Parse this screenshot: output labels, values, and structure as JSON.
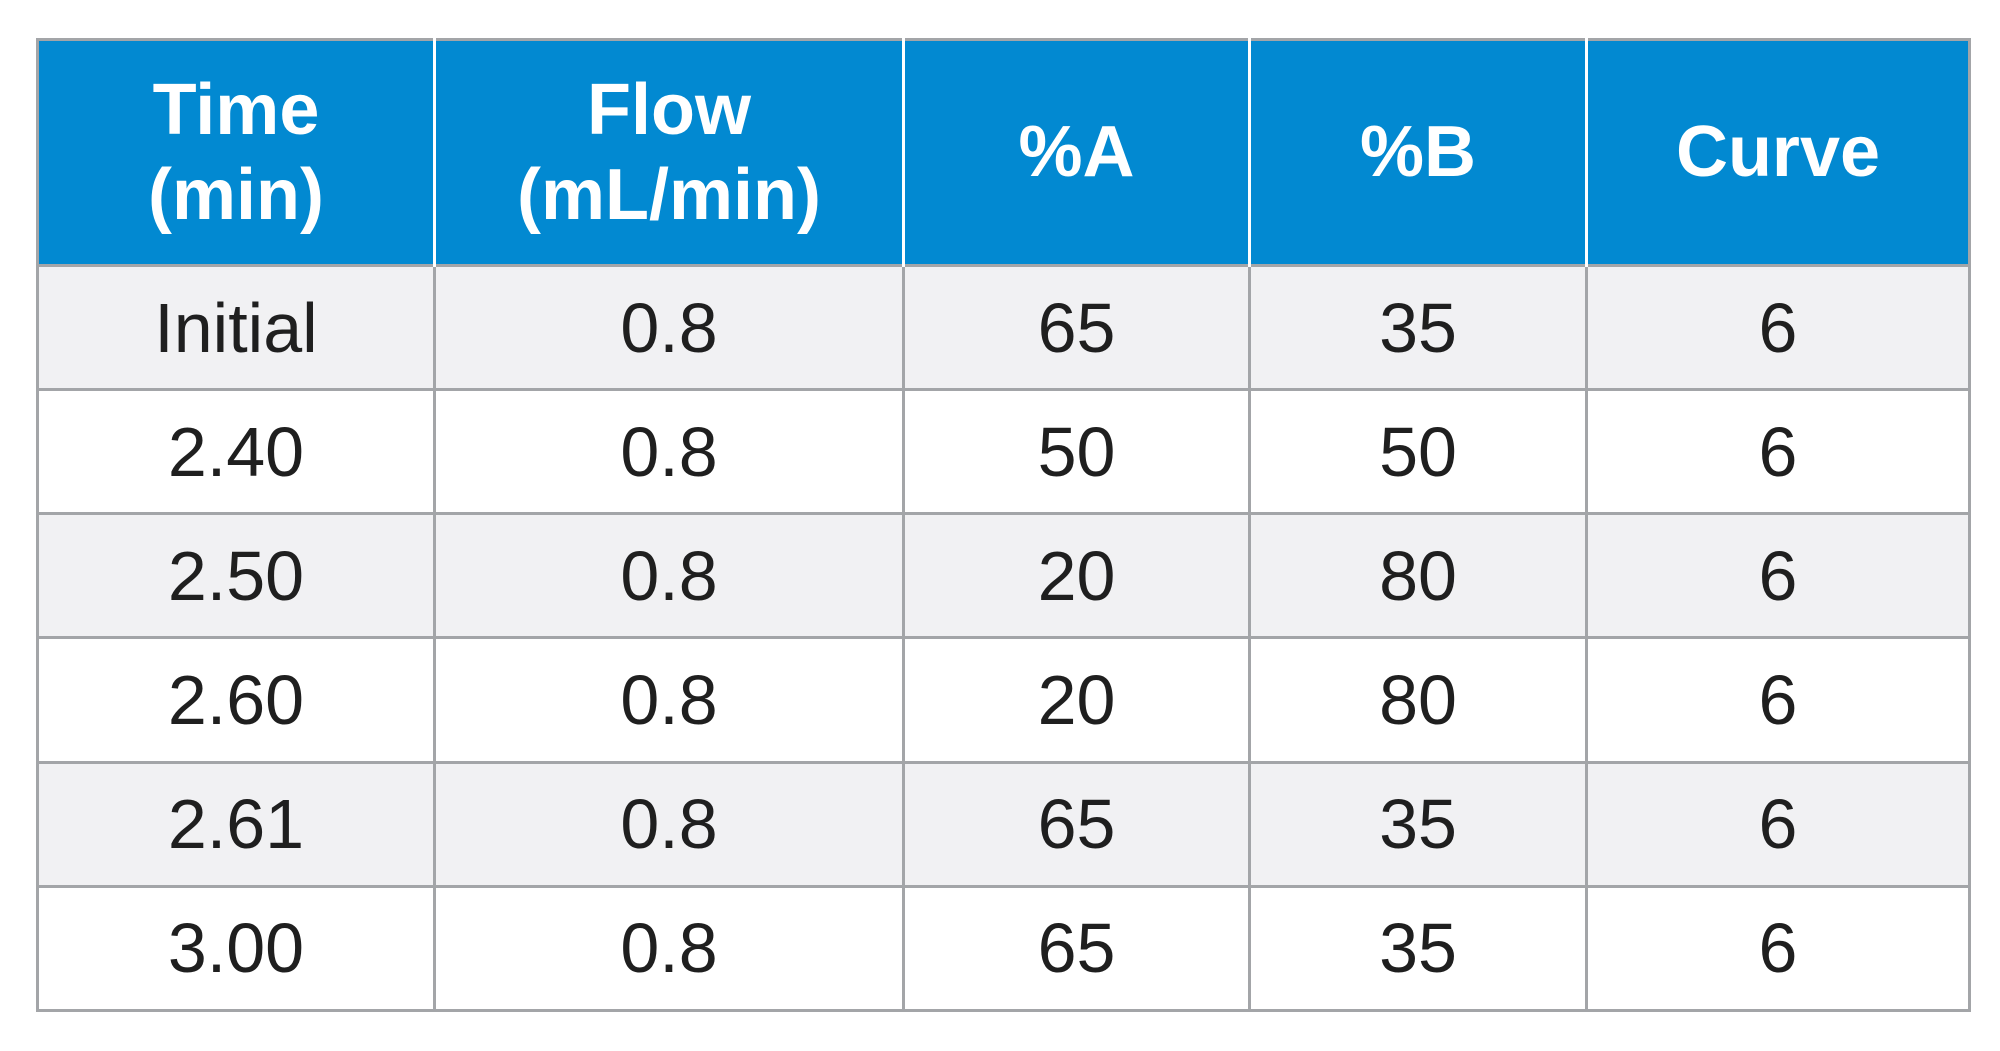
{
  "table": {
    "columns": [
      {
        "line1": "Time",
        "line2": "(min)"
      },
      {
        "line1": "Flow",
        "line2": "(mL/min)"
      },
      {
        "line1": "%A",
        "line2": ""
      },
      {
        "line1": "%B",
        "line2": ""
      },
      {
        "line1": "Curve",
        "line2": ""
      }
    ],
    "rows": [
      [
        "Initial",
        "0.8",
        "65",
        "35",
        "6"
      ],
      [
        "2.40",
        "0.8",
        "50",
        "50",
        "6"
      ],
      [
        "2.50",
        "0.8",
        "20",
        "80",
        "6"
      ],
      [
        "2.60",
        "0.8",
        "20",
        "80",
        "6"
      ],
      [
        "2.61",
        "0.8",
        "65",
        "35",
        "6"
      ],
      [
        "3.00",
        "0.8",
        "65",
        "35",
        "6"
      ]
    ]
  },
  "colors": {
    "header_bg": "#0289d1",
    "header_text": "#ffffff",
    "row_alt_bg": "#f1f1f3",
    "grid_line": "#a3a5a8"
  }
}
